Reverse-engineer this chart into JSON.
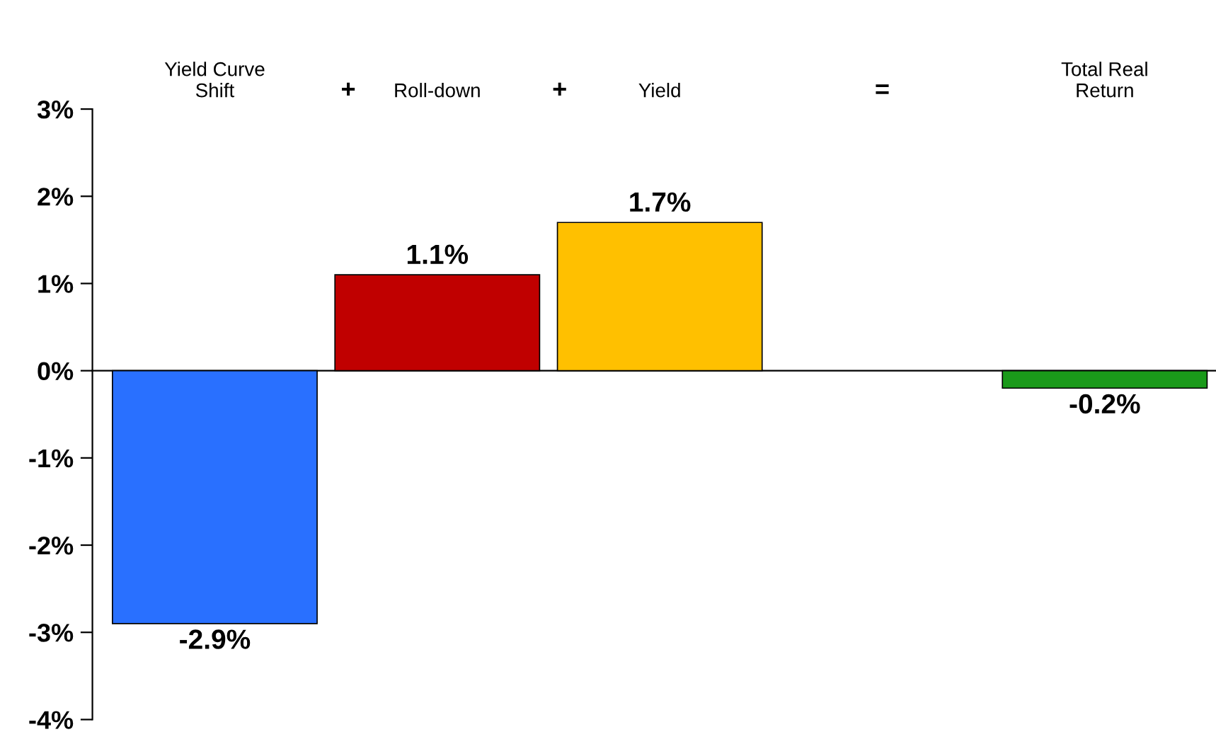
{
  "chart_data": {
    "type": "bar",
    "categories": [
      "Yield Curve\nShift",
      "Roll-down",
      "Yield",
      null,
      "Total Real\nReturn"
    ],
    "values": [
      -2.9,
      1.1,
      1.7,
      null,
      -0.2
    ],
    "colors": [
      "#2970ff",
      "#c00000",
      "#ffc000",
      null,
      "#1a9a1a"
    ],
    "value_labels": [
      "-2.9%",
      "1.1%",
      "1.7%",
      null,
      "-0.2%"
    ],
    "ylim": [
      -4,
      3
    ],
    "yticks": [
      {
        "value": 3,
        "label": "3%"
      },
      {
        "value": 2,
        "label": "2%"
      },
      {
        "value": 1,
        "label": "1%"
      },
      {
        "value": 0,
        "label": "0%"
      },
      {
        "value": -1,
        "label": "-1%"
      },
      {
        "value": -2,
        "label": "-2%"
      },
      {
        "value": -3,
        "label": "-3%"
      },
      {
        "value": -4,
        "label": "-4%"
      }
    ],
    "annotations": [
      "+",
      "+",
      "="
    ],
    "legend": false
  }
}
